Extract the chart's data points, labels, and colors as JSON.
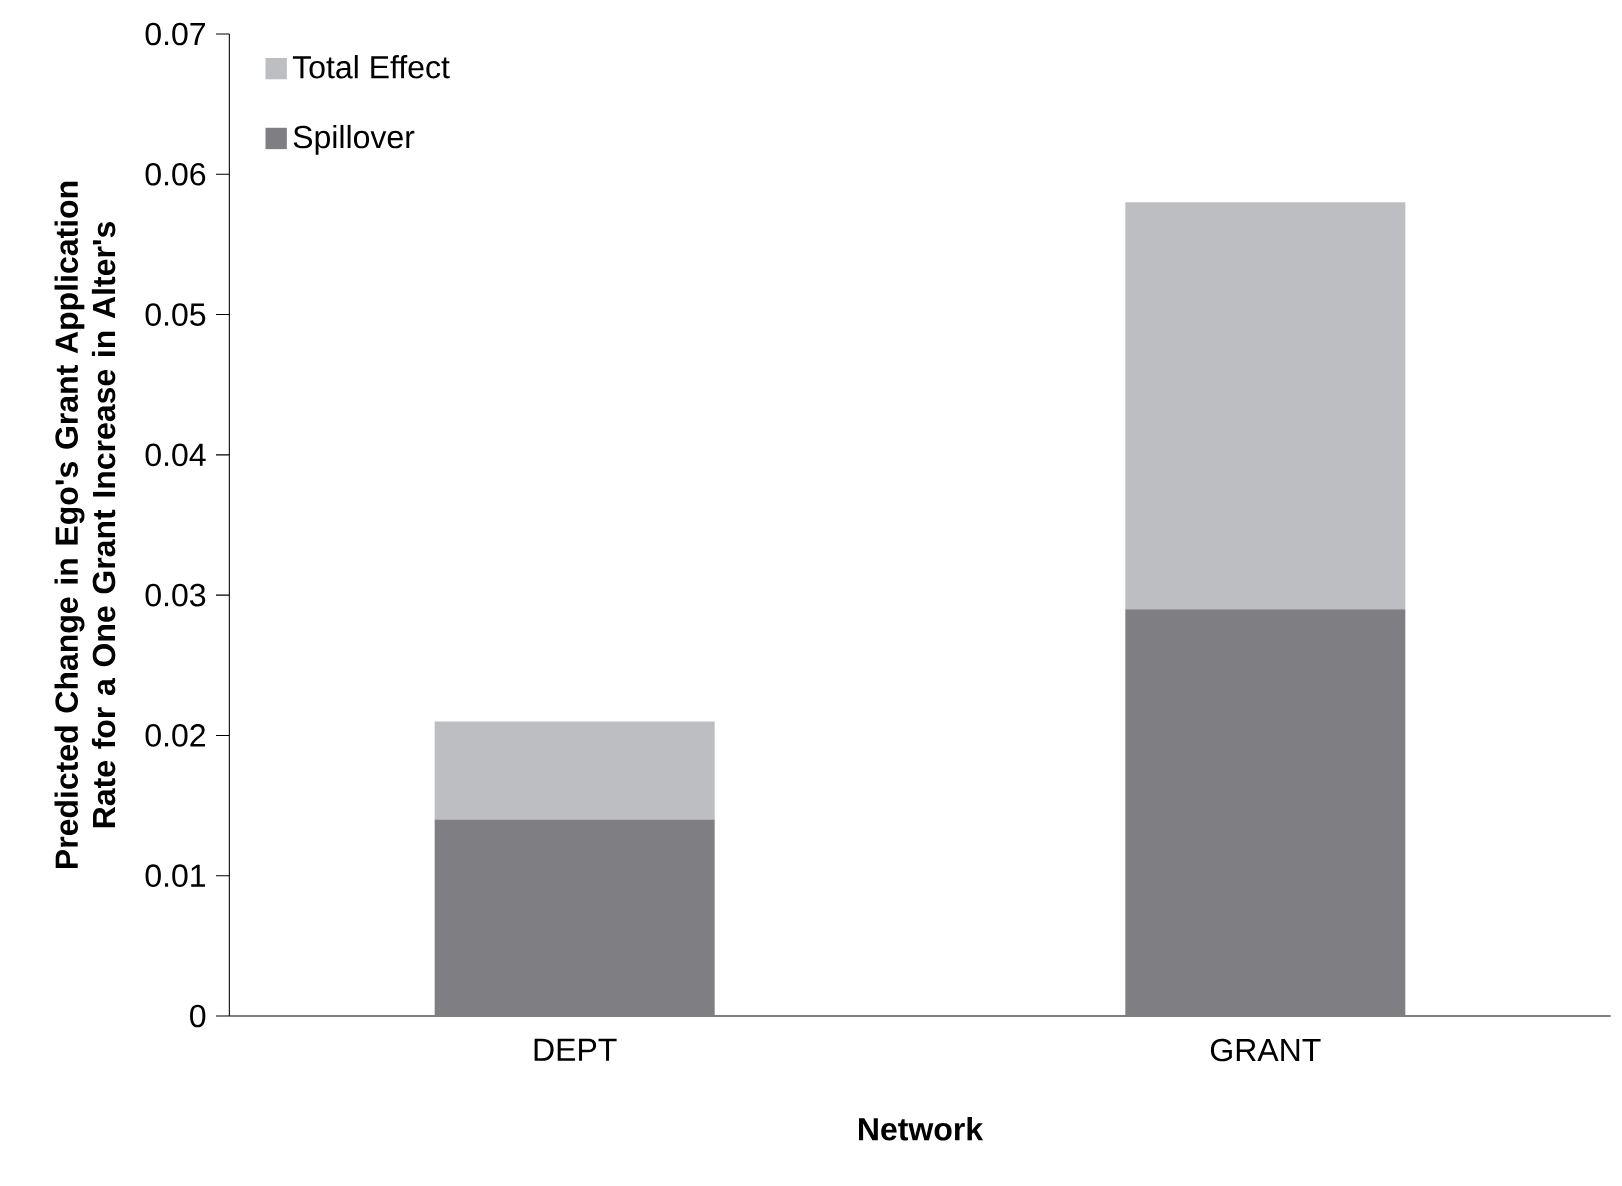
{
  "chart_data": {
    "type": "bar",
    "stacked": true,
    "xlabel": "Network",
    "ylabel": "Predicted Change in Ego's Grant Application Rate for a One Grant Increase in Alter's",
    "categories": [
      "DEPT",
      "GRANT"
    ],
    "series": [
      {
        "name": "Spillover",
        "color": "#7f7f83",
        "values": [
          0.014,
          0.029
        ]
      },
      {
        "name": "Total Effect",
        "color": "#bdbec2",
        "values": [
          0.007,
          0.029
        ]
      }
    ],
    "ylim": [
      0,
      0.07
    ],
    "yticks": [
      0,
      0.01,
      0.02,
      0.03,
      0.04,
      0.05,
      0.06,
      0.07
    ],
    "legend": "top left"
  }
}
